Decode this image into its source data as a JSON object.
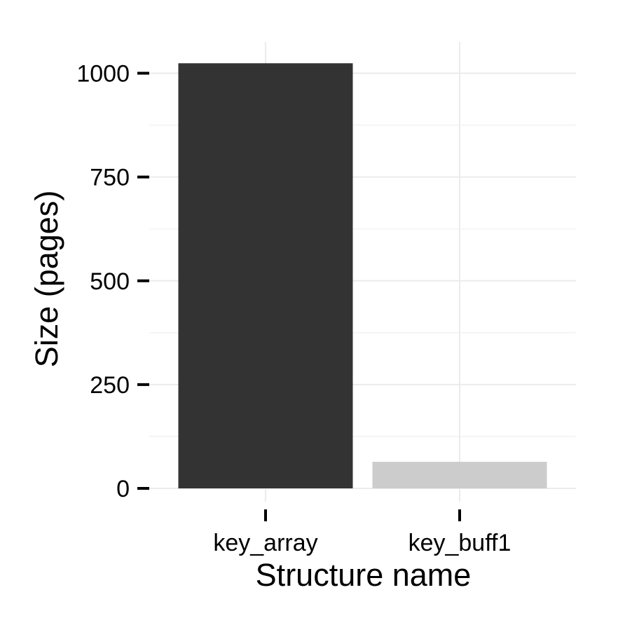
{
  "chart_data": {
    "type": "bar",
    "categories": [
      "key_array",
      "key_buff1"
    ],
    "values": [
      1024,
      64
    ],
    "xlabel": "Structure name",
    "ylabel": "Size (pages)",
    "ylim": [
      0,
      1075
    ],
    "yticks": [
      0,
      250,
      500,
      750,
      1000
    ],
    "ytick_labels": [
      "0",
      "250",
      "500",
      "750",
      "1000"
    ],
    "grid": true,
    "legend": "none",
    "colors": {
      "bars": [
        "#333333",
        "#cccccc"
      ],
      "grid_major": "#ebebeb",
      "grid_minor": "#f5f5f5",
      "ticks": "#000000",
      "background": "#ffffff"
    }
  }
}
